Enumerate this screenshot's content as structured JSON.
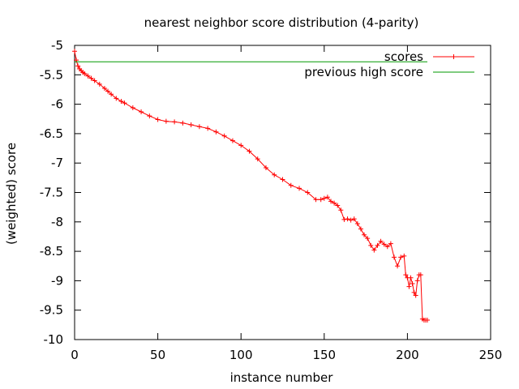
{
  "chart_data": {
    "type": "line",
    "title": "nearest neighbor score distribution (4-parity)",
    "xlabel": "instance number",
    "ylabel": "(weighted) score",
    "xlim": [
      0,
      250
    ],
    "ylim": [
      -10,
      -5
    ],
    "xticks": [
      0,
      50,
      100,
      150,
      200,
      250
    ],
    "yticks": [
      -5,
      -5.5,
      -6,
      -6.5,
      -7,
      -7.5,
      -8,
      -8.5,
      -9,
      -9.5,
      -10
    ],
    "legend_position": "top-right",
    "series": [
      {
        "name": "scores",
        "color": "#ff0000",
        "marker": "plus",
        "x": [
          0,
          1,
          2,
          3,
          4,
          5,
          6,
          8,
          10,
          12,
          15,
          18,
          20,
          22,
          25,
          28,
          30,
          35,
          40,
          45,
          50,
          55,
          60,
          65,
          70,
          75,
          80,
          85,
          90,
          95,
          100,
          105,
          110,
          115,
          120,
          125,
          130,
          135,
          140,
          145,
          148,
          150,
          152,
          154,
          156,
          158,
          160,
          162,
          164,
          166,
          168,
          170,
          172,
          174,
          176,
          178,
          180,
          182,
          184,
          186,
          188,
          190,
          192,
          194,
          196,
          198,
          199,
          200,
          201,
          202,
          203,
          204,
          205,
          206,
          207,
          208,
          209,
          210,
          211,
          212
        ],
        "values": [
          -5.1,
          -5.25,
          -5.35,
          -5.4,
          -5.43,
          -5.46,
          -5.48,
          -5.52,
          -5.56,
          -5.6,
          -5.66,
          -5.73,
          -5.78,
          -5.83,
          -5.9,
          -5.95,
          -5.98,
          -6.06,
          -6.13,
          -6.2,
          -6.26,
          -6.29,
          -6.3,
          -6.32,
          -6.35,
          -6.38,
          -6.41,
          -6.47,
          -6.54,
          -6.62,
          -6.7,
          -6.8,
          -6.93,
          -7.08,
          -7.2,
          -7.28,
          -7.38,
          -7.43,
          -7.5,
          -7.62,
          -7.62,
          -7.6,
          -7.58,
          -7.65,
          -7.68,
          -7.72,
          -7.8,
          -7.96,
          -7.95,
          -7.97,
          -7.95,
          -8.03,
          -8.12,
          -8.22,
          -8.28,
          -8.4,
          -8.48,
          -8.4,
          -8.33,
          -8.38,
          -8.42,
          -8.37,
          -8.6,
          -8.75,
          -8.6,
          -8.58,
          -8.9,
          -8.95,
          -9.1,
          -8.95,
          -9.05,
          -9.2,
          -9.25,
          -9.0,
          -8.9,
          -8.9,
          -9.65,
          -9.67,
          -9.67,
          -9.67
        ]
      },
      {
        "name": "previous high score",
        "color": "#009900",
        "marker": "none",
        "x": [
          0,
          212
        ],
        "values": [
          -5.28,
          -5.28
        ]
      }
    ]
  }
}
